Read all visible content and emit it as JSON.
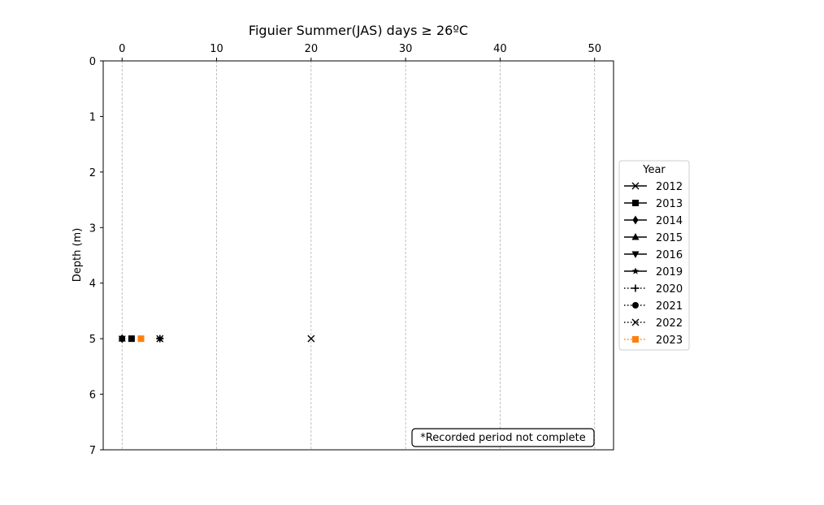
{
  "chart_data": {
    "type": "scatter",
    "title": "Figuier Summer(JAS) days ≥ 26ºC",
    "xlabel": "",
    "ylabel": "Depth (m)",
    "xlim": [
      -2,
      52
    ],
    "ylim": [
      7,
      0
    ],
    "xticks": [
      0,
      10,
      20,
      30,
      40,
      50
    ],
    "yticks": [
      0,
      1,
      2,
      3,
      4,
      5,
      6,
      7
    ],
    "x_axis_position": "top",
    "y_inverted": true,
    "grid": "vertical dashed",
    "legend_title": "Year",
    "legend_placement": "center-right outside",
    "annotation": "*Recorded period not complete",
    "series": [
      {
        "name": "2012",
        "marker": "x",
        "line": "solid",
        "color": "#000000",
        "points": [
          {
            "x": 20,
            "y": 5
          }
        ]
      },
      {
        "name": "2013",
        "marker": "square",
        "line": "solid",
        "color": "#000000",
        "points": [
          {
            "x": 1,
            "y": 5
          }
        ]
      },
      {
        "name": "2014",
        "marker": "diamond",
        "line": "solid",
        "color": "#000000",
        "points": [
          {
            "x": 0,
            "y": 5
          }
        ]
      },
      {
        "name": "2015",
        "marker": "triangle-up",
        "line": "solid",
        "color": "#000000",
        "points": [
          {
            "x": 0,
            "y": 5
          }
        ]
      },
      {
        "name": "2016",
        "marker": "triangle-down",
        "line": "solid",
        "color": "#000000",
        "points": [
          {
            "x": 0,
            "y": 5
          }
        ]
      },
      {
        "name": "2019",
        "marker": "star",
        "line": "solid",
        "color": "#000000",
        "points": [
          {
            "x": 4,
            "y": 5
          }
        ]
      },
      {
        "name": "2020",
        "marker": "plus",
        "line": "dotted",
        "color": "#000000",
        "points": [
          {
            "x": 4,
            "y": 5
          }
        ]
      },
      {
        "name": "2021",
        "marker": "circle",
        "line": "dotted",
        "color": "#000000",
        "points": [
          {
            "x": 0,
            "y": 5
          }
        ]
      },
      {
        "name": "2022",
        "marker": "x",
        "line": "dotted",
        "color": "#000000",
        "points": [
          {
            "x": 4,
            "y": 5
          }
        ]
      },
      {
        "name": "2023",
        "marker": "square",
        "line": "dotted",
        "color": "#ff7f0e",
        "points": [
          {
            "x": 2,
            "y": 5
          }
        ]
      }
    ]
  }
}
